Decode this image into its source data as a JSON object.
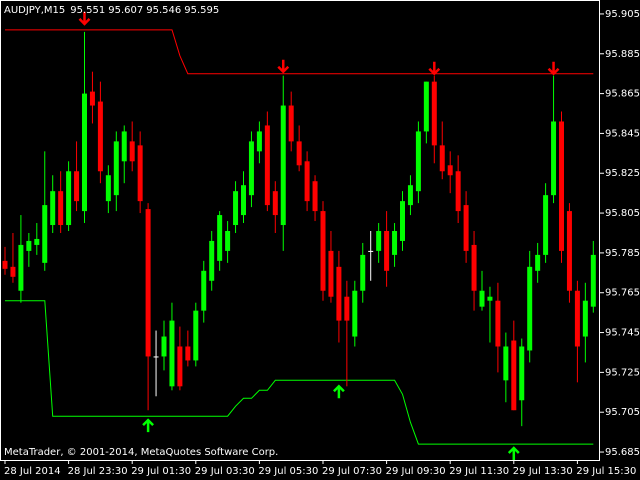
{
  "chart_data": {
    "type": "candlestick",
    "title": "AUDJPY,M15",
    "header_values": [
      95.551,
      95.607,
      95.546,
      95.595
    ],
    "footer": "MetaTrader, © 2001-2014, MetaQuotes Software Corp.",
    "x": [
      "28 Jul 2014",
      null,
      null,
      null,
      null,
      null,
      null,
      null,
      "28 Jul 23:30",
      null,
      null,
      null,
      null,
      null,
      null,
      null,
      "29 Jul 01:30",
      null,
      null,
      null,
      null,
      null,
      null,
      null,
      "29 Jul 03:30",
      null,
      null,
      null,
      null,
      null,
      null,
      null,
      "29 Jul 05:30",
      null,
      null,
      null,
      null,
      null,
      null,
      null,
      "29 Jul 07:30",
      null,
      null,
      null,
      null,
      null,
      null,
      null,
      "29 Jul 09:30",
      null,
      null,
      null,
      null,
      null,
      null,
      null,
      "29 Jul 11:30",
      null,
      null,
      null,
      null,
      null,
      null,
      null,
      "29 Jul 13:30",
      null,
      null,
      null,
      null,
      null,
      null,
      null,
      "29 Jul 15:30",
      null,
      null
    ],
    "open": [
      95.781,
      95.778,
      95.766,
      95.786,
      95.789,
      95.78,
      95.799,
      95.816,
      95.799,
      95.826,
      95.806,
      95.866,
      95.861,
      95.811,
      95.814,
      95.831,
      95.841,
      95.839,
      95.807,
      95.733,
      95.733,
      95.718,
      95.738,
      95.738,
      95.731,
      95.756,
      95.771,
      95.781,
      95.786,
      95.799,
      95.804,
      95.814,
      95.836,
      95.849,
      95.816,
      95.799,
      95.859,
      95.841,
      95.831,
      95.821,
      95.806,
      95.786,
      95.778,
      95.763,
      95.743,
      95.766,
      95.786,
      95.786,
      95.796,
      95.784,
      95.791,
      95.809,
      95.816,
      95.846,
      95.871,
      95.839,
      95.829,
      95.826,
      95.809,
      95.789,
      95.758,
      95.761,
      95.761,
      95.721,
      95.741,
      95.711,
      95.736,
      95.776,
      95.784,
      95.814,
      95.851,
      95.806,
      95.766,
      95.743,
      95.758
    ],
    "high": [
      95.788,
      95.795,
      95.804,
      95.795,
      95.8,
      95.836,
      95.824,
      95.826,
      95.831,
      95.841,
      95.896,
      95.876,
      95.871,
      95.829,
      95.846,
      95.849,
      95.851,
      95.846,
      95.81,
      95.746,
      95.751,
      95.76,
      95.748,
      95.746,
      95.76,
      95.781,
      95.796,
      95.806,
      95.801,
      95.821,
      95.826,
      95.846,
      95.851,
      95.856,
      95.821,
      95.874,
      95.866,
      95.849,
      95.836,
      95.824,
      95.811,
      95.796,
      95.786,
      95.771,
      95.771,
      95.79,
      95.796,
      95.8,
      95.806,
      95.8,
      95.816,
      95.824,
      95.851,
      95.871,
      95.874,
      95.851,
      95.836,
      95.834,
      95.816,
      95.796,
      95.776,
      95.768,
      95.77,
      95.745,
      95.751,
      95.742,
      95.786,
      95.79,
      95.82,
      95.874,
      95.856,
      95.81,
      95.771,
      95.77,
      95.791
    ],
    "low": [
      95.774,
      95.77,
      95.76,
      95.778,
      95.784,
      95.776,
      95.795,
      95.795,
      95.796,
      95.806,
      95.8,
      95.85,
      95.82,
      95.805,
      95.806,
      95.82,
      95.826,
      95.805,
      95.706,
      95.713,
      95.726,
      95.716,
      95.716,
      95.728,
      95.728,
      95.75,
      95.766,
      95.776,
      95.78,
      95.795,
      95.8,
      95.808,
      95.83,
      95.806,
      95.795,
      95.786,
      95.836,
      95.826,
      95.806,
      95.801,
      95.761,
      95.76,
      95.74,
      95.718,
      95.738,
      95.76,
      95.771,
      95.78,
      95.768,
      95.778,
      95.786,
      95.804,
      95.81,
      95.84,
      95.83,
      95.822,
      95.815,
      95.8,
      95.78,
      95.756,
      95.756,
      95.74,
      95.725,
      95.71,
      95.706,
      95.698,
      95.73,
      95.77,
      95.78,
      95.81,
      95.78,
      95.76,
      95.72,
      95.73,
      95.755
    ],
    "close": [
      95.777,
      95.773,
      95.789,
      95.791,
      95.792,
      95.809,
      95.816,
      95.799,
      95.826,
      95.811,
      95.865,
      95.859,
      95.826,
      95.824,
      95.841,
      95.846,
      95.831,
      95.811,
      95.733,
      95.733,
      95.743,
      95.751,
      95.718,
      95.731,
      95.756,
      95.776,
      95.791,
      95.804,
      95.796,
      95.816,
      95.819,
      95.841,
      95.846,
      95.809,
      95.804,
      95.859,
      95.841,
      95.829,
      95.811,
      95.806,
      95.766,
      95.763,
      95.751,
      95.751,
      95.766,
      95.784,
      95.786,
      95.796,
      95.776,
      95.796,
      95.811,
      95.819,
      95.846,
      95.871,
      95.839,
      95.826,
      95.824,
      95.806,
      95.786,
      95.766,
      95.766,
      95.763,
      95.738,
      95.738,
      95.706,
      95.738,
      95.778,
      95.784,
      95.814,
      95.851,
      95.786,
      95.766,
      95.738,
      95.761,
      95.784
    ],
    "up_color": "#00ff00",
    "down_color": "#ff0000",
    "doji_color": "#ffffff",
    "upper_band": {
      "color": "#ff0000",
      "values": [
        95.897,
        95.897,
        95.897,
        95.897,
        95.897,
        95.897,
        95.897,
        95.897,
        95.897,
        95.897,
        95.897,
        95.897,
        95.897,
        95.897,
        95.897,
        95.897,
        95.897,
        95.897,
        95.897,
        95.897,
        95.897,
        95.897,
        95.884,
        95.875,
        95.875,
        95.875,
        95.875,
        95.875,
        95.875,
        95.875,
        95.875,
        95.875,
        95.875,
        95.875,
        95.875,
        95.875,
        95.875,
        95.875,
        95.875,
        95.875,
        95.875,
        95.875,
        95.875,
        95.875,
        95.875,
        95.875,
        95.875,
        95.875,
        95.875,
        95.875,
        95.875,
        95.875,
        95.875,
        95.875,
        95.875,
        95.875,
        95.875,
        95.875,
        95.875,
        95.875,
        95.875,
        95.875,
        95.875,
        95.875,
        95.875,
        95.875,
        95.875,
        95.875,
        95.875,
        95.875,
        95.875,
        95.875,
        95.875,
        95.875,
        95.875
      ]
    },
    "lower_band": {
      "color": "#00ff00",
      "values": [
        95.761,
        95.761,
        95.761,
        95.761,
        95.761,
        95.761,
        95.703,
        95.703,
        95.703,
        95.703,
        95.703,
        95.703,
        95.703,
        95.703,
        95.703,
        95.703,
        95.703,
        95.703,
        95.703,
        95.703,
        95.703,
        95.703,
        95.703,
        95.703,
        95.703,
        95.703,
        95.703,
        95.703,
        95.703,
        95.708,
        95.712,
        95.712,
        95.716,
        95.716,
        95.721,
        95.721,
        95.721,
        95.721,
        95.721,
        95.721,
        95.721,
        95.721,
        95.721,
        95.721,
        95.721,
        95.721,
        95.721,
        95.721,
        95.721,
        95.721,
        95.714,
        95.7,
        95.689,
        95.689,
        95.689,
        95.689,
        95.689,
        95.689,
        95.689,
        95.689,
        95.689,
        95.689,
        95.689,
        95.689,
        95.689,
        95.689,
        95.689,
        95.689,
        95.689,
        95.689,
        95.689,
        95.689,
        95.689,
        95.689,
        95.689
      ]
    },
    "sell_arrows": {
      "color": "#ff0000",
      "values": [
        null,
        null,
        null,
        null,
        null,
        null,
        null,
        null,
        null,
        null,
        95.903,
        null,
        null,
        null,
        null,
        null,
        null,
        null,
        null,
        null,
        null,
        null,
        null,
        null,
        null,
        null,
        null,
        null,
        null,
        null,
        null,
        null,
        null,
        null,
        null,
        95.879,
        null,
        null,
        null,
        null,
        null,
        null,
        null,
        null,
        null,
        null,
        null,
        null,
        null,
        null,
        null,
        null,
        null,
        null,
        95.878,
        null,
        null,
        null,
        null,
        null,
        null,
        null,
        null,
        null,
        null,
        null,
        null,
        null,
        null,
        95.878,
        null,
        null,
        null,
        null,
        null
      ]
    },
    "buy_arrows": {
      "color": "#00ff00",
      "values": [
        null,
        null,
        null,
        null,
        null,
        null,
        null,
        null,
        null,
        null,
        null,
        null,
        null,
        null,
        null,
        null,
        null,
        null,
        95.698,
        null,
        null,
        null,
        null,
        null,
        null,
        null,
        null,
        null,
        null,
        null,
        null,
        null,
        null,
        null,
        null,
        null,
        null,
        null,
        null,
        null,
        null,
        null,
        95.715,
        null,
        null,
        null,
        null,
        null,
        null,
        null,
        null,
        null,
        null,
        null,
        null,
        null,
        null,
        null,
        null,
        null,
        null,
        null,
        null,
        null,
        95.684,
        null,
        null,
        null,
        null,
        null,
        null,
        null,
        null,
        null,
        null
      ]
    },
    "ylim": [
      95.681,
      95.912
    ],
    "yticks": [
      95.905,
      95.885,
      95.865,
      95.845,
      95.825,
      95.805,
      95.785,
      95.765,
      95.745,
      95.725,
      95.705,
      95.685
    ]
  }
}
